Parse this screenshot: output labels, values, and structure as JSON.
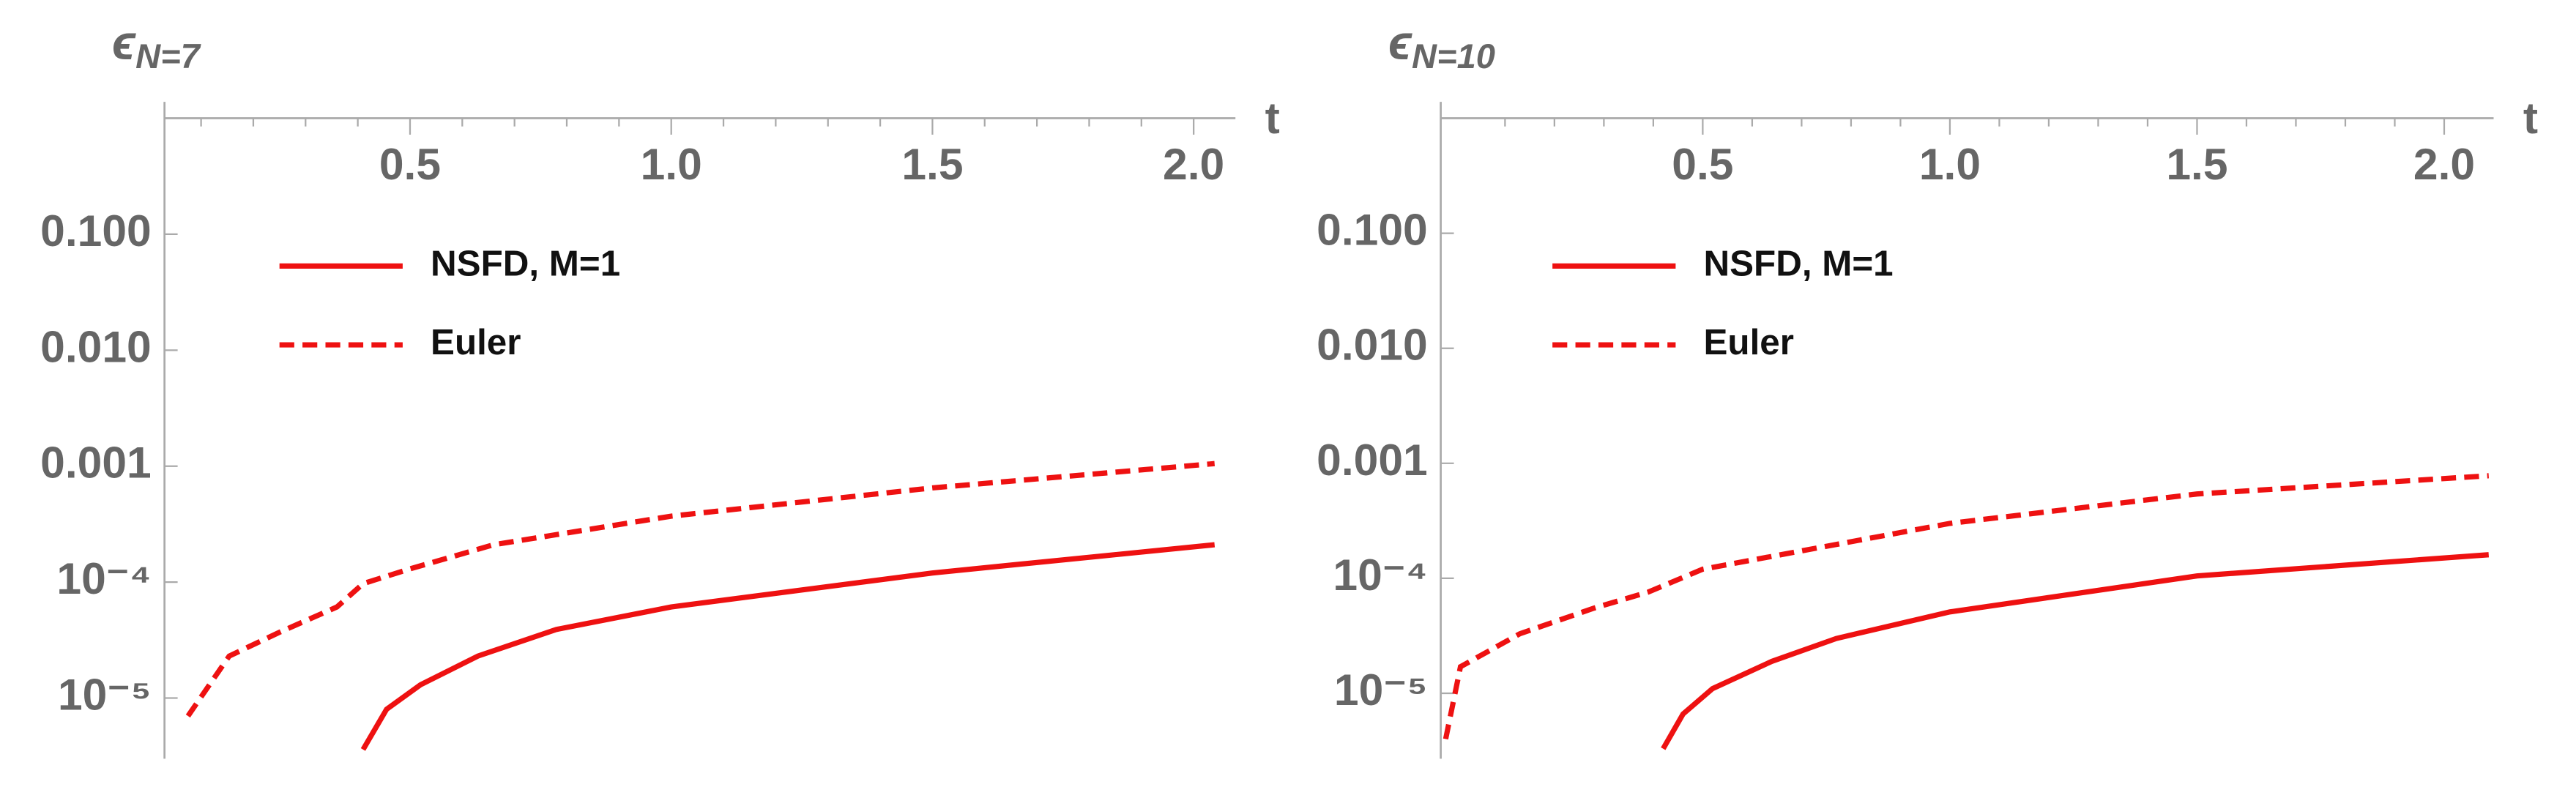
{
  "chart_data": [
    {
      "type": "line",
      "title": "ϵ",
      "title_subscript": "N=7",
      "x_label": "t",
      "log_y": true,
      "xlim": [
        0.03,
        2.08
      ],
      "ylim": [
        3e-06,
        1
      ],
      "xticks": [
        0.5,
        {
          "value": 1.0,
          "label": "1.0"
        },
        1.5,
        {
          "value": 2.0,
          "label": "2.0"
        }
      ],
      "xminorticks": [
        0.1,
        0.2,
        0.3,
        0.4,
        0.6,
        0.7,
        0.8,
        0.9,
        1.1,
        1.2,
        1.3,
        1.4,
        1.6,
        1.7,
        1.8,
        1.9
      ],
      "yticks": [
        {
          "value": 0.1,
          "label": "0.100"
        },
        {
          "value": 0.01,
          "label": "0.010"
        },
        {
          "value": 0.001,
          "label": "0.001"
        },
        {
          "value": 0.0001,
          "label": "10⁻⁴"
        },
        {
          "value": 1e-05,
          "label": "10⁻⁵"
        }
      ],
      "series": [
        {
          "name": "NSFD, M=1",
          "color": "#ee1111",
          "dash": false,
          "x": [
            0.41,
            0.455,
            0.52,
            0.63,
            0.78,
            1.0,
            1.5,
            2.04
          ],
          "values": [
            3.6e-06,
            8e-06,
            1.3e-05,
            2.3e-05,
            3.9e-05,
            6.1e-05,
            0.00012,
            0.00021
          ]
        },
        {
          "name": "Euler",
          "color": "#ee1111",
          "dash": true,
          "x": [
            0.075,
            0.154,
            0.25,
            0.36,
            0.41,
            0.5,
            0.66,
            1.0,
            1.5,
            2.04
          ],
          "values": [
            7e-06,
            2.3e-05,
            3.7e-05,
            6.1e-05,
            9.7e-05,
            0.00013,
            0.00021,
            0.00037,
            0.00065,
            0.00105
          ]
        }
      ]
    },
    {
      "type": "line",
      "title": "ϵ",
      "title_subscript": "N=10",
      "x_label": "t",
      "log_y": true,
      "xlim": [
        -0.03,
        2.1
      ],
      "ylim": [
        2.7e-06,
        1
      ],
      "xticks": [
        0.5,
        {
          "value": 1.0,
          "label": "1.0"
        },
        1.5,
        {
          "value": 2.0,
          "label": "2.0"
        }
      ],
      "xminorticks": [
        0.1,
        0.2,
        0.3,
        0.4,
        0.6,
        0.7,
        0.8,
        0.9,
        1.1,
        1.2,
        1.3,
        1.4,
        1.6,
        1.7,
        1.8,
        1.9
      ],
      "yticks": [
        {
          "value": 0.1,
          "label": "0.100"
        },
        {
          "value": 0.01,
          "label": "0.010"
        },
        {
          "value": 0.001,
          "label": "0.001"
        },
        {
          "value": 0.0001,
          "label": "10⁻⁴"
        },
        {
          "value": 1e-05,
          "label": "10⁻⁵"
        }
      ],
      "series": [
        {
          "name": "NSFD, M=1",
          "color": "#ee1111",
          "dash": false,
          "x": [
            0.42,
            0.46,
            0.52,
            0.64,
            0.77,
            1.0,
            1.5,
            2.09
          ],
          "values": [
            3.3e-06,
            6.6e-06,
            1.1e-05,
            1.9e-05,
            3e-05,
            5.1e-05,
            0.000105,
            0.00016
          ]
        },
        {
          "name": "Euler",
          "color": "#ee1111",
          "dash": true,
          "x": [
            -0.02,
            0.01,
            0.13,
            0.28,
            0.39,
            0.5,
            1.0,
            1.5,
            2.09
          ],
          "values": [
            4e-06,
            1.7e-05,
            3.3e-05,
            5.5e-05,
            7.6e-05,
            0.00012,
            0.0003,
            0.00054,
            0.00078
          ]
        }
      ]
    }
  ]
}
